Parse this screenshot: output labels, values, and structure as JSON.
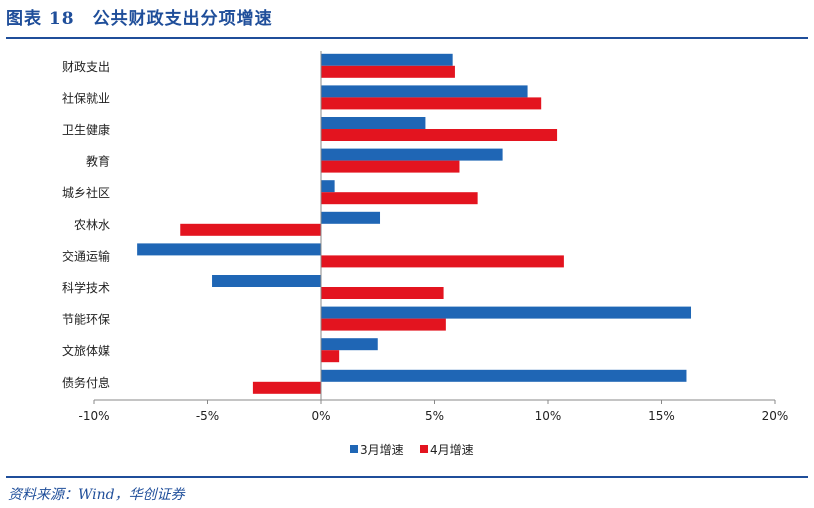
{
  "header": {
    "title": "图表 18　公共财政支出分项增速"
  },
  "footer": {
    "source": "资料来源：Wind，华创证券"
  },
  "chart_data": {
    "type": "bar",
    "orientation": "horizontal",
    "categories": [
      "财政支出",
      "社保就业",
      "卫生健康",
      "教育",
      "城乡社区",
      "农林水",
      "交通运输",
      "科学技术",
      "节能环保",
      "文旅体媒",
      "债务付息"
    ],
    "series": [
      {
        "name": "3月增速",
        "color": "#1f66b5",
        "values": [
          5.8,
          9.1,
          4.6,
          8.0,
          0.6,
          2.6,
          -8.1,
          -4.8,
          16.3,
          2.5,
          16.1
        ]
      },
      {
        "name": "4月增速",
        "color": "#e3141f",
        "values": [
          5.9,
          9.7,
          10.4,
          6.1,
          6.9,
          -6.2,
          10.7,
          5.4,
          5.5,
          0.8,
          -3.0
        ]
      }
    ],
    "xlim": [
      -10,
      20
    ],
    "xticks": [
      -10,
      -5,
      0,
      5,
      10,
      15,
      20
    ],
    "xtick_labels": [
      "-10%",
      "-5%",
      "0%",
      "5%",
      "10%",
      "15%",
      "20%"
    ],
    "legend": "bottom"
  }
}
